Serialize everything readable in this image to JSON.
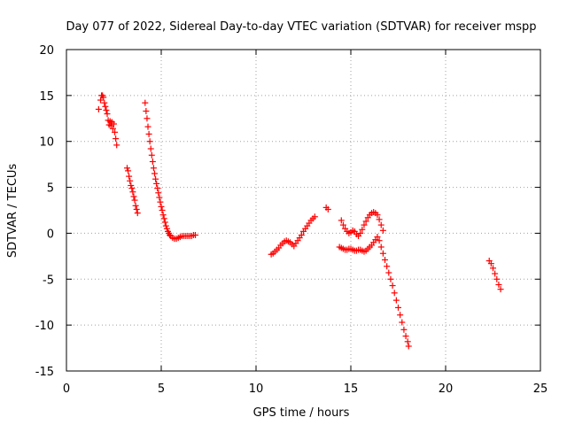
{
  "chart_data": {
    "type": "scatter",
    "title": "Day 077 of 2022, Sidereal Day-to-day VTEC variation (SDTVAR) for receiver mspp",
    "xlabel": "GPS time / hours",
    "ylabel": "SDTVAR / TECUs",
    "xlim": [
      0,
      25
    ],
    "ylim": [
      -15,
      20
    ],
    "xticks": [
      0,
      5,
      10,
      15,
      20,
      25
    ],
    "yticks": [
      -15,
      -10,
      -5,
      0,
      5,
      10,
      15,
      20
    ],
    "grid": true,
    "marker": "plus",
    "color": "#ff0000",
    "series": [
      {
        "name": "SDTVAR",
        "x": [
          1.7,
          1.8,
          1.85,
          1.9,
          1.95,
          2.0,
          2.05,
          2.1,
          2.15,
          2.2,
          2.25,
          2.3,
          2.35,
          2.4,
          2.45,
          2.5,
          2.55,
          2.6,
          2.65,
          3.2,
          3.25,
          3.3,
          3.35,
          3.4,
          3.45,
          3.5,
          3.55,
          3.6,
          3.65,
          3.7,
          3.75,
          4.15,
          4.2,
          4.25,
          4.3,
          4.35,
          4.4,
          4.45,
          4.5,
          4.55,
          4.6,
          4.65,
          4.7,
          4.75,
          4.8,
          4.85,
          4.9,
          4.95,
          5.0,
          5.05,
          5.1,
          5.15,
          5.2,
          5.25,
          5.3,
          5.35,
          5.4,
          5.45,
          5.5,
          5.6,
          5.7,
          5.8,
          5.9,
          6.0,
          6.1,
          6.2,
          6.3,
          6.4,
          6.5,
          6.6,
          6.7,
          6.8,
          10.8,
          10.9,
          11.0,
          11.1,
          11.2,
          11.3,
          11.4,
          11.5,
          11.6,
          11.7,
          11.8,
          11.9,
          12.0,
          12.1,
          12.2,
          12.3,
          12.4,
          12.5,
          12.6,
          12.7,
          12.8,
          12.9,
          13.0,
          13.1,
          13.7,
          13.8,
          14.5,
          14.6,
          14.7,
          14.8,
          14.9,
          15.0,
          15.1,
          15.2,
          15.3,
          15.4,
          15.5,
          15.6,
          15.7,
          15.8,
          15.9,
          16.0,
          16.1,
          16.2,
          16.3,
          16.4,
          16.5,
          16.6,
          16.7,
          14.4,
          14.5,
          14.6,
          14.7,
          14.8,
          14.9,
          15.0,
          15.1,
          15.2,
          15.3,
          15.4,
          15.5,
          15.6,
          15.7,
          15.8,
          15.9,
          16.0,
          16.1,
          16.2,
          16.3,
          16.4,
          16.5,
          16.6,
          16.7,
          16.8,
          16.9,
          17.0,
          17.1,
          17.2,
          17.3,
          17.4,
          17.5,
          17.6,
          17.7,
          17.8,
          17.9,
          18.0,
          18.05,
          22.3,
          22.4,
          22.5,
          22.6,
          22.7,
          22.8,
          22.9
        ],
        "y": [
          13.5,
          14.5,
          15.0,
          15.0,
          14.8,
          14.2,
          13.8,
          13.4,
          13.0,
          12.3,
          11.8,
          12.2,
          11.7,
          12.1,
          11.4,
          11.9,
          11.0,
          10.3,
          9.6,
          7.1,
          6.8,
          6.2,
          5.7,
          5.2,
          4.9,
          4.5,
          4.0,
          3.6,
          3.0,
          2.6,
          2.2,
          14.2,
          13.3,
          12.5,
          11.6,
          10.8,
          10.0,
          9.2,
          8.5,
          7.8,
          7.1,
          6.5,
          5.9,
          5.4,
          4.9,
          4.4,
          3.9,
          3.4,
          2.9,
          2.5,
          2.0,
          1.6,
          1.2,
          0.8,
          0.5,
          0.2,
          0.0,
          -0.2,
          -0.3,
          -0.5,
          -0.6,
          -0.6,
          -0.5,
          -0.4,
          -0.3,
          -0.3,
          -0.3,
          -0.3,
          -0.3,
          -0.3,
          -0.2,
          -0.2,
          -2.3,
          -2.2,
          -2.0,
          -1.8,
          -1.6,
          -1.3,
          -1.1,
          -0.9,
          -0.8,
          -0.9,
          -1.0,
          -1.2,
          -1.4,
          -1.1,
          -0.8,
          -0.5,
          -0.2,
          0.2,
          0.5,
          0.8,
          1.1,
          1.4,
          1.6,
          1.8,
          2.8,
          2.6,
          1.4,
          0.9,
          0.5,
          0.2,
          0.0,
          0.1,
          0.3,
          0.2,
          -0.1,
          -0.3,
          0.0,
          0.4,
          0.9,
          1.3,
          1.7,
          2.0,
          2.2,
          2.3,
          2.2,
          2.0,
          1.5,
          0.9,
          0.3,
          -1.5,
          -1.6,
          -1.7,
          -1.8,
          -1.8,
          -1.7,
          -1.7,
          -1.8,
          -1.9,
          -1.9,
          -1.8,
          -1.8,
          -1.9,
          -2.0,
          -1.9,
          -1.7,
          -1.5,
          -1.3,
          -1.0,
          -0.7,
          -0.4,
          -0.8,
          -1.5,
          -2.2,
          -2.9,
          -3.6,
          -4.3,
          -5.0,
          -5.7,
          -6.5,
          -7.3,
          -8.1,
          -8.9,
          -9.7,
          -10.5,
          -11.2,
          -11.8,
          -12.3,
          -3.0,
          -3.3,
          -3.8,
          -4.4,
          -5.0,
          -5.6,
          -6.1
        ]
      }
    ]
  }
}
